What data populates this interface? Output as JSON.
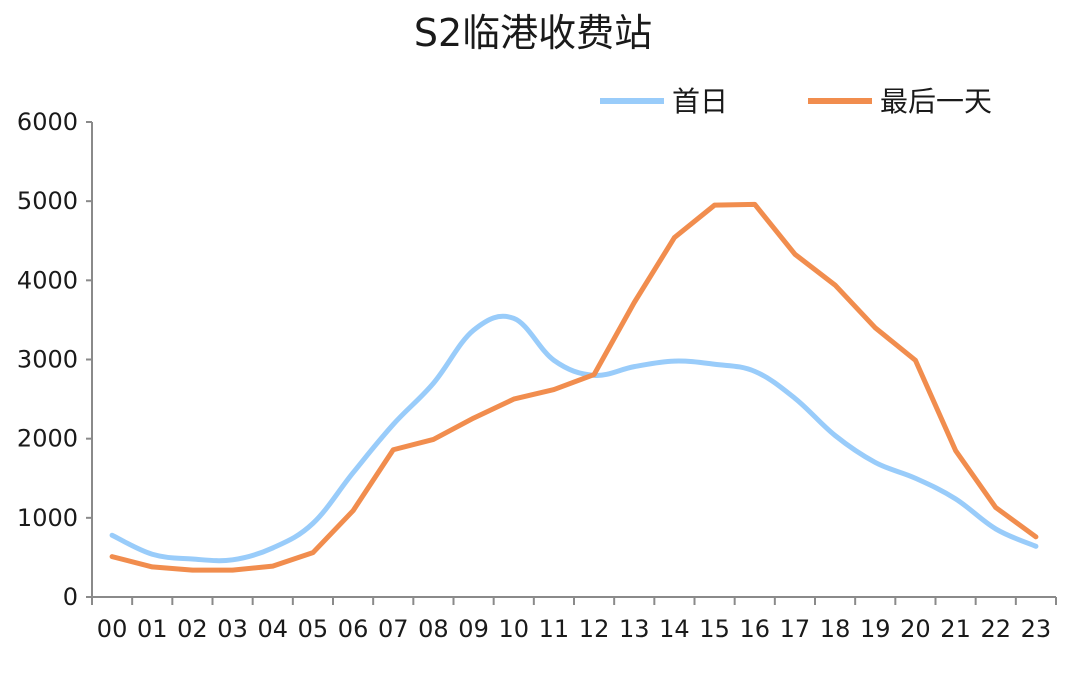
{
  "chart_data": {
    "type": "line",
    "title": "S2临港收费站",
    "xlabel": "",
    "ylabel": "",
    "categories": [
      "00",
      "01",
      "02",
      "03",
      "04",
      "05",
      "06",
      "07",
      "08",
      "09",
      "10",
      "11",
      "12",
      "13",
      "14",
      "15",
      "16",
      "17",
      "18",
      "19",
      "20",
      "21",
      "22",
      "23"
    ],
    "ylim": [
      0,
      6000
    ],
    "yticks": [
      0,
      1000,
      2000,
      3000,
      4000,
      5000,
      6000
    ],
    "grid": false,
    "legend_position": "top-right",
    "series": [
      {
        "name": "首日",
        "color": "#99ccfa",
        "values": [
          780,
          540,
          480,
          470,
          620,
          930,
          1570,
          2180,
          2700,
          3370,
          3520,
          2990,
          2800,
          2910,
          2980,
          2940,
          2850,
          2510,
          2040,
          1700,
          1500,
          1240,
          860,
          640
        ]
      },
      {
        "name": "最后一天",
        "color": "#f18d4e",
        "values": [
          510,
          380,
          340,
          340,
          390,
          560,
          1090,
          1860,
          1990,
          2260,
          2500,
          2620,
          2810,
          3720,
          4540,
          4950,
          4960,
          4330,
          3940,
          3400,
          2990,
          1850,
          1130,
          760
        ]
      }
    ]
  }
}
